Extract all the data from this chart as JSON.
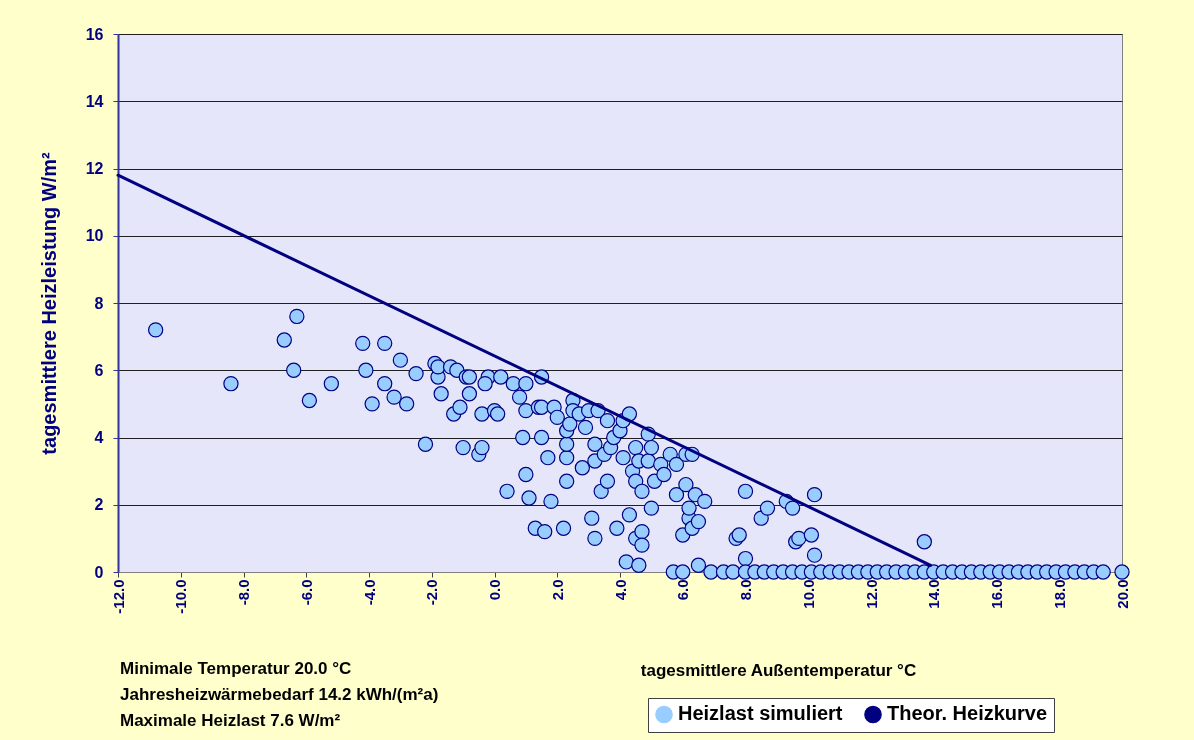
{
  "chart_data": {
    "type": "scatter",
    "xlabel": "tagesmittlere Außentemperatur  °C",
    "ylabel": "tagesmittlere Heizleistung W/m²",
    "annotations": [
      "Minimale Temperatur 20.0 °C",
      "Jahresheizwärmebedarf 14.2 kWh/(m²a)",
      "Maximale Heizlast 7.6 W/m²"
    ],
    "xlim": [
      -12,
      20
    ],
    "ylim": [
      0,
      16
    ],
    "xticks": [
      {
        "value": -12,
        "label": "-12.0"
      },
      {
        "value": -10,
        "label": "-10.0"
      },
      {
        "value": -8,
        "label": "-8.0"
      },
      {
        "value": -6,
        "label": "-6.0"
      },
      {
        "value": -4,
        "label": "-4.0"
      },
      {
        "value": -2,
        "label": "-2.0"
      },
      {
        "value": 0,
        "label": "0.0"
      },
      {
        "value": 2,
        "label": "2.0"
      },
      {
        "value": 4,
        "label": "4.0"
      },
      {
        "value": 6,
        "label": "6.0"
      },
      {
        "value": 8,
        "label": "8.0"
      },
      {
        "value": 10,
        "label": "10.0"
      },
      {
        "value": 12,
        "label": "12.0"
      },
      {
        "value": 14,
        "label": "14.0"
      },
      {
        "value": 16,
        "label": "16.0"
      },
      {
        "value": 18,
        "label": "18.0"
      },
      {
        "value": 20,
        "label": "20.0"
      }
    ],
    "yticks": [
      0,
      2,
      4,
      6,
      8,
      10,
      12,
      14,
      16
    ],
    "grid": "y",
    "legend": "bottom right",
    "series": [
      {
        "name": "Heizlast simuliert",
        "marker": "circle",
        "color": "#99ccff",
        "x": [
          -10.8,
          -8.4,
          -6.4,
          -6.7,
          -6.3,
          -5.9,
          -5.2,
          -4.2,
          -4.1,
          -3.9,
          -3.5,
          -3.5,
          -3.2,
          -3.0,
          -2.8,
          -2.5,
          -2.2,
          -1.9,
          -1.8,
          -1.8,
          -1.7,
          -1.4,
          -1.2,
          -1.3,
          -1.1,
          -0.9,
          -0.8,
          -1.0,
          -0.8,
          -0.5,
          -0.4,
          -0.4,
          -0.2,
          -0.3,
          0.0,
          0.1,
          0.2,
          0.4,
          0.6,
          0.8,
          0.9,
          1.0,
          1.0,
          1.0,
          1.1,
          1.4,
          1.3,
          1.5,
          1.6,
          1.5,
          1.5,
          1.7,
          1.8,
          1.9,
          2.0,
          2.2,
          2.3,
          2.3,
          2.3,
          2.3,
          2.4,
          2.5,
          2.5,
          2.7,
          2.8,
          2.9,
          3.0,
          3.1,
          3.2,
          3.2,
          3.2,
          3.3,
          3.4,
          3.5,
          3.6,
          3.6,
          3.7,
          3.8,
          3.9,
          4.0,
          4.1,
          4.1,
          4.2,
          4.3,
          4.3,
          4.4,
          4.5,
          4.5,
          4.5,
          4.6,
          4.7,
          4.7,
          4.6,
          4.7,
          4.9,
          4.9,
          5.0,
          5.0,
          5.1,
          5.3,
          5.4,
          5.6,
          5.7,
          5.8,
          5.8,
          6.0,
          6.0,
          6.1,
          6.1,
          6.2,
          6.2,
          6.3,
          6.3,
          6.4,
          6.5,
          6.5,
          6.7,
          7.7,
          7.8,
          8.0,
          8.0,
          8.5,
          8.7,
          9.3,
          9.5,
          9.6,
          9.7,
          10.1,
          10.2,
          10.2,
          13.7,
          6.9,
          7.3,
          7.6,
          8.0,
          8.3,
          8.6,
          8.9,
          9.2,
          9.5,
          9.8,
          10.1,
          10.4,
          10.7,
          11.0,
          11.3,
          11.6,
          11.9,
          12.2,
          12.5,
          12.8,
          13.1,
          13.4,
          13.7,
          14.0,
          14.3,
          14.6,
          14.9,
          15.2,
          15.5,
          15.8,
          16.1,
          16.4,
          16.7,
          17.0,
          17.3,
          17.6,
          17.9,
          18.2,
          18.5,
          18.8,
          19.1,
          19.4,
          20.0
        ],
        "values": [
          7.2,
          5.6,
          6.0,
          6.9,
          7.6,
          5.1,
          5.6,
          6.8,
          6.0,
          5.0,
          5.6,
          6.8,
          5.2,
          6.3,
          5.0,
          5.9,
          3.8,
          6.2,
          5.8,
          6.1,
          5.3,
          6.1,
          6.0,
          4.7,
          4.9,
          5.8,
          5.8,
          3.7,
          5.3,
          3.5,
          3.7,
          4.7,
          5.8,
          5.6,
          4.8,
          4.7,
          5.8,
          2.4,
          5.6,
          5.2,
          4.0,
          4.8,
          5.6,
          2.9,
          2.2,
          4.9,
          1.3,
          4.9,
          1.2,
          4.0,
          5.8,
          3.4,
          2.1,
          4.9,
          4.6,
          1.3,
          3.4,
          3.8,
          4.2,
          2.7,
          4.4,
          5.1,
          4.8,
          4.7,
          3.1,
          4.3,
          4.8,
          1.6,
          1.0,
          3.8,
          3.3,
          4.8,
          2.4,
          3.5,
          4.5,
          2.7,
          3.7,
          4.0,
          1.3,
          4.2,
          3.4,
          4.5,
          0.3,
          4.7,
          1.7,
          3.0,
          3.7,
          2.7,
          1.0,
          3.3,
          2.4,
          1.2,
          0.2,
          0.8,
          4.1,
          3.3,
          1.9,
          3.7,
          2.7,
          3.2,
          2.9,
          3.5,
          0.0,
          3.2,
          2.3,
          1.1,
          0.0,
          2.6,
          3.5,
          1.6,
          1.9,
          1.3,
          3.5,
          2.3,
          1.5,
          0.2,
          2.1,
          1.0,
          1.1,
          2.4,
          0.4,
          1.6,
          1.9,
          2.1,
          1.9,
          0.9,
          1.0,
          1.1,
          2.3,
          0.5,
          0.9,
          0,
          0,
          0,
          0,
          0,
          0,
          0,
          0,
          0,
          0,
          0,
          0,
          0,
          0,
          0,
          0,
          0,
          0,
          0,
          0,
          0,
          0,
          0,
          0,
          0,
          0,
          0,
          0,
          0,
          0,
          0,
          0,
          0,
          0,
          0,
          0,
          0,
          0,
          0,
          0,
          0,
          0,
          0
        ]
      },
      {
        "name": "Theor. Heizkurve",
        "type": "line",
        "marker": "none",
        "color": "#000080",
        "x": [
          -12,
          13.9
        ],
        "values": [
          11.8,
          0.2
        ]
      }
    ]
  }
}
